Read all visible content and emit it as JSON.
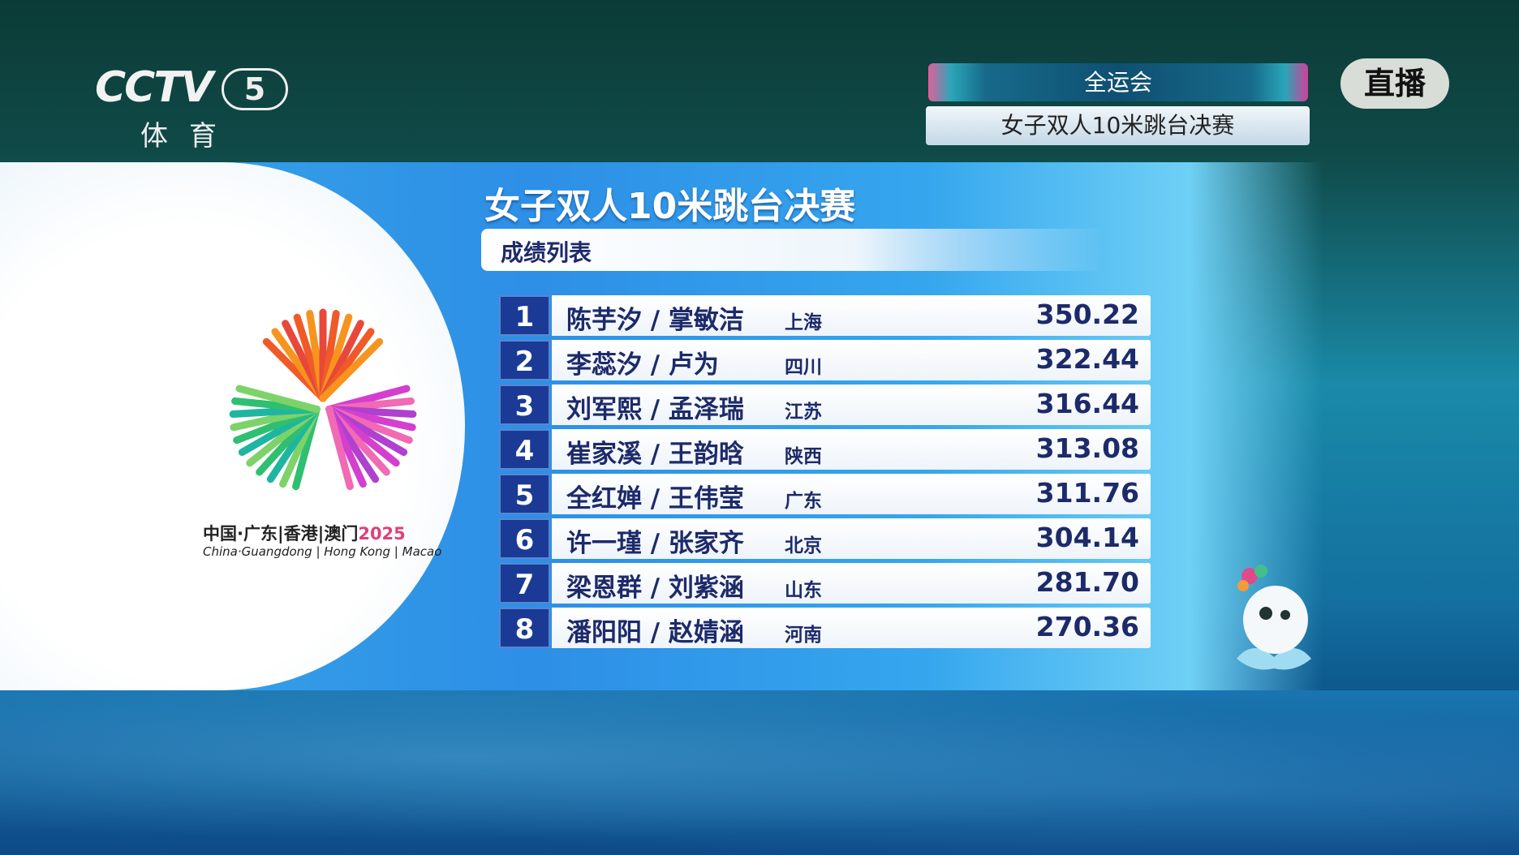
{
  "channel": {
    "logo": "CCTV",
    "number": "5",
    "name": "体育"
  },
  "header": {
    "competition": "全运会",
    "event": "女子双人10米跳台决赛",
    "live": "直播"
  },
  "emblem": {
    "text_cn": "中国·广东|香港|澳门",
    "year": "2025",
    "text_en": "China·Guangdong | Hong Kong | Macao"
  },
  "board": {
    "title": "女子双人10米跳台决赛",
    "subtitle": "成绩列表",
    "rows": [
      {
        "rank": "1",
        "names": "陈芋汐 / 掌敏洁",
        "province": "上海",
        "score": "350.22"
      },
      {
        "rank": "2",
        "names": "李蕊汐 / 卢为",
        "province": "四川",
        "score": "322.44"
      },
      {
        "rank": "3",
        "names": "刘军熙 / 孟泽瑞",
        "province": "江苏",
        "score": "316.44"
      },
      {
        "rank": "4",
        "names": "崔家溪 / 王韵晗",
        "province": "陕西",
        "score": "313.08"
      },
      {
        "rank": "5",
        "names": "全红婵 / 王伟莹",
        "province": "广东",
        "score": "311.76"
      },
      {
        "rank": "6",
        "names": "许一瑾 / 张家齐",
        "province": "北京",
        "score": "304.14"
      },
      {
        "rank": "7",
        "names": "梁恩群 / 刘紫涵",
        "province": "山东",
        "score": "281.70"
      },
      {
        "rank": "8",
        "names": "潘阳阳 / 赵婧涵",
        "province": "河南",
        "score": "270.36"
      }
    ]
  },
  "colors": {
    "rank_bg": "#1a3a96",
    "text": "#1d2a6a",
    "panel": "#2d8fe6"
  }
}
